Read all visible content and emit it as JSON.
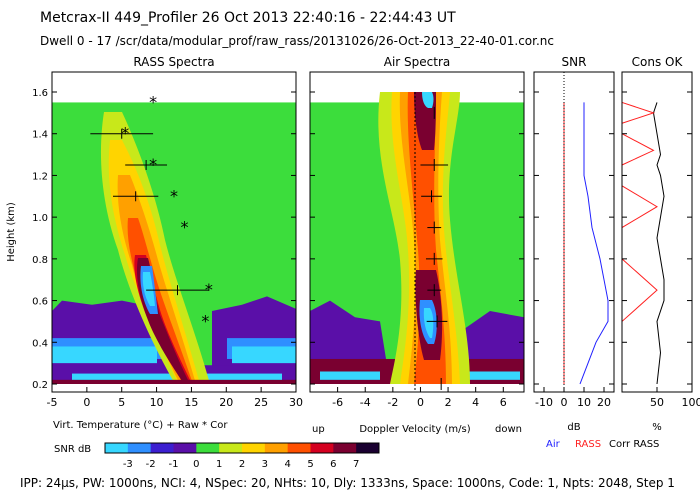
{
  "header": {
    "title": "Metcrax-II  449_Profiler  26 Oct 2013  22:40:16 - 22:44:43 UT",
    "subtitle": "Dwell  0 - 17  /scr/data/modular_prof/raw_rass/20131026/26-Oct-2013_22-40-01.cor.nc"
  },
  "footer": "IPP: 24µs, PW: 1000ns, NCI: 4, NSpec: 20, NHts: 10, Dly: 1333ns, Space: 1000ns, Code: 1, Npts: 2048, Step 1",
  "colors": {
    "scale": [
      "#37d7ff",
      "#2f8fff",
      "#3c1fd0",
      "#5a0fa8",
      "#3cdd3c",
      "#c8e81a",
      "#ffd400",
      "#ffa000",
      "#ff5000",
      "#d40020",
      "#7a0030",
      "#1a0030"
    ],
    "air_line": "#2020ff",
    "rass_line": "#ff2020",
    "corr_line": "#000000"
  },
  "colorbar": {
    "label": "SNR dB",
    "ticks": [
      "-3",
      "-2",
      "-1",
      "0",
      "1",
      "2",
      "3",
      "4",
      "5",
      "6",
      "7"
    ]
  },
  "chart_data": [
    {
      "type": "heatmap",
      "title": "RASS Spectra",
      "xlabel": "Virt. Temperature (°C)  + Raw  * Cor",
      "ylabel": "Height (km)",
      "xlim": [
        -5,
        30
      ],
      "ylim": [
        0.15,
        1.6
      ],
      "xticks": [
        "-5",
        "0",
        "5",
        "10",
        "15",
        "20",
        "25",
        "30"
      ],
      "yticks": [
        "0.2",
        "0.4",
        "0.6",
        "0.8",
        "1.0",
        "1.2",
        "1.4",
        "1.6"
      ],
      "raw_points": [
        {
          "x": 5.0,
          "y": 1.4,
          "err": 9.0
        },
        {
          "x": 8.5,
          "y": 1.25,
          "err": 6.0
        },
        {
          "x": 7.0,
          "y": 1.1,
          "err": 6.5
        },
        {
          "x": 13.0,
          "y": 0.65,
          "err": 9.0
        }
      ],
      "cor_points": [
        {
          "x": 9.5,
          "y": 1.55
        },
        {
          "x": 5.5,
          "y": 1.4
        },
        {
          "x": 9.5,
          "y": 1.25
        },
        {
          "x": 12.5,
          "y": 1.1
        },
        {
          "x": 14.0,
          "y": 0.95
        },
        {
          "x": 17.5,
          "y": 0.65
        },
        {
          "x": 17.0,
          "y": 0.5
        }
      ]
    },
    {
      "type": "heatmap",
      "title": "Air Spectra",
      "xlabel": "Doppler Velocity (m/s)",
      "xlabel_left": "up",
      "xlabel_right": "down",
      "xlim": [
        -8,
        7.5
      ],
      "ylim": [
        0.15,
        1.6
      ],
      "xticks": [
        "-6",
        "-4",
        "-2",
        "0",
        "2",
        "4",
        "6"
      ],
      "points": [
        {
          "x": 1.0,
          "y": 1.5,
          "err": 0.0
        },
        {
          "x": 1.0,
          "y": 1.25,
          "err": 2.0
        },
        {
          "x": 0.8,
          "y": 1.1,
          "err": 1.5
        },
        {
          "x": 1.0,
          "y": 0.95,
          "err": 1.0
        },
        {
          "x": 1.0,
          "y": 0.8,
          "err": 1.2
        },
        {
          "x": 1.0,
          "y": 0.65,
          "err": 1.0
        },
        {
          "x": 1.2,
          "y": 0.5,
          "err": 1.5
        },
        {
          "x": 1.5,
          "y": 0.2,
          "err": 0.0
        }
      ]
    },
    {
      "type": "line",
      "title": "SNR",
      "xlabel": "dB",
      "xlim": [
        -15,
        25
      ],
      "xticks": [
        "-10",
        "0",
        "10",
        "20"
      ],
      "series": [
        {
          "name": "Air",
          "color": "#2020ff",
          "x": [
            8,
            12,
            16,
            22,
            22,
            20,
            18,
            14,
            12,
            10,
            10,
            10,
            10,
            10
          ],
          "y": [
            0.2,
            0.3,
            0.4,
            0.5,
            0.6,
            0.7,
            0.8,
            0.95,
            1.1,
            1.2,
            1.25,
            1.3,
            1.4,
            1.55
          ]
        },
        {
          "name": "RASS",
          "color": "#ff2020",
          "x": [
            0,
            0,
            0,
            0,
            0,
            0,
            0,
            0,
            0,
            0,
            0
          ],
          "y": [
            0.2,
            0.35,
            0.5,
            0.65,
            0.8,
            0.95,
            1.1,
            1.25,
            1.4,
            1.5,
            1.55
          ]
        }
      ]
    },
    {
      "type": "line",
      "title": "Cons OK",
      "xlabel": "%",
      "xlim": [
        0,
        100
      ],
      "xticks": [
        "50",
        "100"
      ],
      "series": [
        {
          "name": "Corr",
          "color": "#000000",
          "x": [
            50,
            55,
            50,
            60,
            60,
            55,
            50,
            55,
            60,
            55,
            50,
            55,
            50,
            45,
            50
          ],
          "y": [
            0.2,
            0.35,
            0.5,
            0.6,
            0.7,
            0.8,
            0.9,
            1.0,
            1.1,
            1.2,
            1.25,
            1.3,
            1.4,
            1.5,
            1.55
          ]
        },
        {
          "name": "RASS",
          "color": "#ff2020",
          "x": [
            0,
            0,
            50,
            0,
            0,
            50,
            0,
            0,
            45,
            0,
            0,
            45,
            0,
            0
          ],
          "y": [
            0.2,
            0.5,
            0.65,
            0.8,
            0.95,
            1.05,
            1.15,
            1.25,
            1.32,
            1.4,
            1.45,
            1.5,
            1.55,
            1.55
          ]
        }
      ]
    }
  ],
  "legend": {
    "air": "Air",
    "rass": "RASS",
    "corr": "Corr RASS"
  }
}
